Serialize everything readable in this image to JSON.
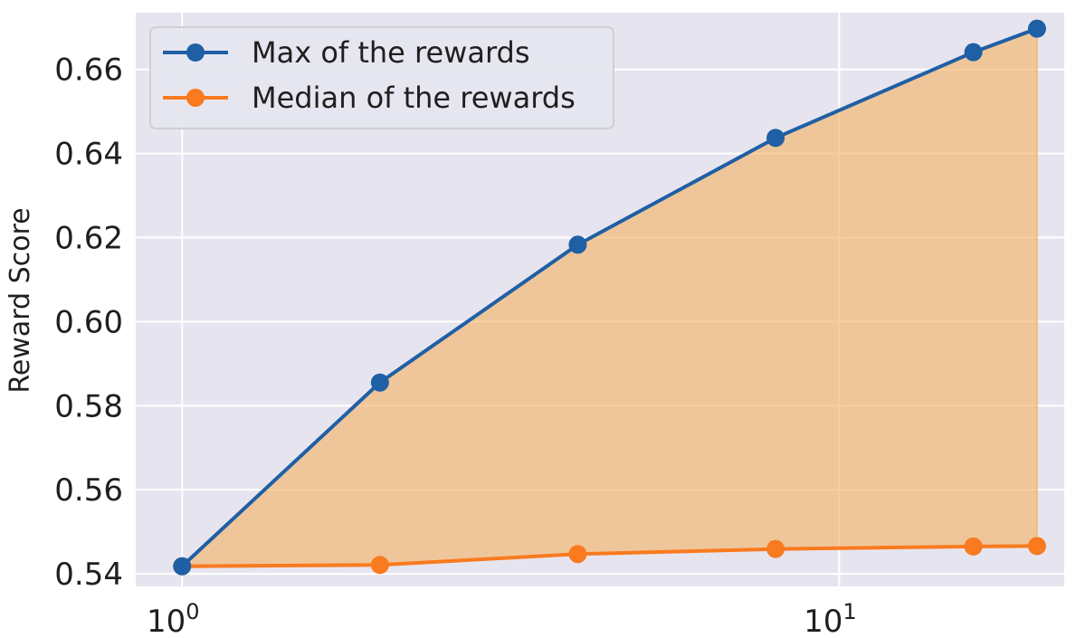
{
  "chart_data": {
    "type": "line",
    "title": "",
    "xlabel": "",
    "ylabel": "Reward Score",
    "x_scale": "log",
    "x": [
      1,
      2,
      4,
      8,
      16,
      20
    ],
    "xlim": [
      0.85,
      22
    ],
    "ylim": [
      0.537,
      0.6735
    ],
    "x_ticks": [
      {
        "value": 1,
        "base": "10",
        "exp": "0"
      },
      {
        "value": 10,
        "base": "10",
        "exp": "1"
      }
    ],
    "y_ticks": [
      {
        "value": 0.54,
        "label": "0.54"
      },
      {
        "value": 0.56,
        "label": "0.56"
      },
      {
        "value": 0.58,
        "label": "0.58"
      },
      {
        "value": 0.6,
        "label": "0.60"
      },
      {
        "value": 0.62,
        "label": "0.62"
      },
      {
        "value": 0.64,
        "label": "0.64"
      },
      {
        "value": 0.66,
        "label": "0.66"
      }
    ],
    "series": [
      {
        "name": "Max of the rewards",
        "color": "#1f5fa5",
        "values": [
          0.5418,
          0.5855,
          0.6183,
          0.6437,
          0.6641,
          0.6697
        ]
      },
      {
        "name": "Median of the rewards",
        "color": "#f97a1f",
        "values": [
          0.5418,
          0.5421,
          0.5447,
          0.5459,
          0.5465,
          0.5466
        ]
      }
    ],
    "fill_between": {
      "color": "#f5b56a",
      "opacity": 0.65
    },
    "grid": true,
    "background": "#e6e5ef",
    "legend_position": "top-left"
  }
}
